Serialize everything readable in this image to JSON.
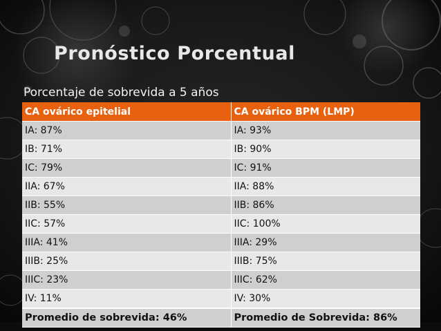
{
  "slide": {
    "title": "Pronóstico Porcentual",
    "subtitle": "Porcentaje de sobrevida a 5 años"
  },
  "table": {
    "headers": [
      "CA ovárico epitelial",
      "CA ovárico BPM (LMP)"
    ],
    "rows": [
      [
        "IA: 87%",
        "IA: 93%"
      ],
      [
        "IB: 71%",
        "IB: 90%"
      ],
      [
        "IC: 79%",
        "IC: 91%"
      ],
      [
        "IIA: 67%",
        "IIA: 88%"
      ],
      [
        "IIB: 55%",
        "IIB: 86%"
      ],
      [
        "IIC: 57%",
        "IIC: 100%"
      ],
      [
        "IIIA: 41%",
        "IIIA: 29%"
      ],
      [
        "IIIB: 25%",
        "IIIB: 75%"
      ],
      [
        "IIIC: 23%",
        "IIIC: 62%"
      ],
      [
        "IV: 11%",
        "IV: 30%"
      ]
    ],
    "footer": [
      "Promedio de sobrevida: 46%",
      "Promedio de Sobrevida: 86%"
    ]
  },
  "colors": {
    "background": "#141414",
    "header_fill": "#e8610f",
    "row_dark": "#cfcfcf",
    "row_light": "#e8e8e8",
    "title_text": "#e8e8e8"
  }
}
